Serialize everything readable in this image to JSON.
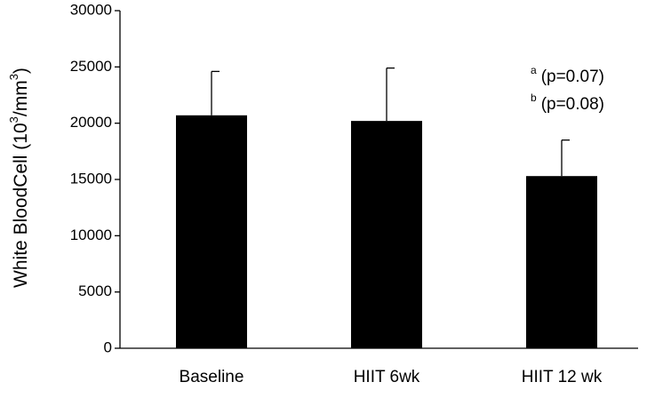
{
  "chart_data": {
    "type": "bar",
    "categories": [
      "Baseline",
      "HIIT 6wk",
      "HIIT 12 wk"
    ],
    "values": [
      20700,
      20200,
      15300
    ],
    "error_plus": [
      3900,
      4700,
      3200
    ],
    "ylabel": "White BloodCell (10",
    "ylabel_sup1": "3",
    "ylabel_mid": "/mm",
    "ylabel_sup2": "3",
    "ylabel_end": ")",
    "ylim": [
      0,
      30000
    ],
    "yticks": [
      0,
      5000,
      10000,
      15000,
      20000,
      25000,
      30000
    ],
    "bar_color": "#000000",
    "grid": false,
    "annotations": [
      {
        "marker": "a",
        "text": "(p=0.07)"
      },
      {
        "marker": "b",
        "text": "(p=0.08)"
      }
    ]
  }
}
